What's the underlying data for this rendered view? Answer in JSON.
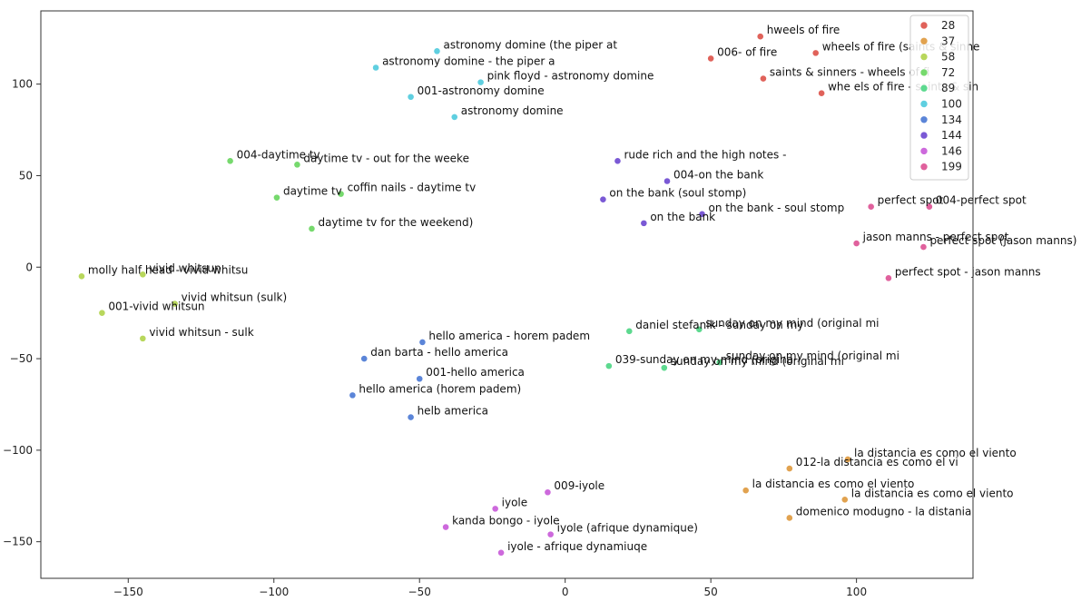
{
  "chart_data": {
    "type": "scatter",
    "title": "",
    "xlabel": "",
    "ylabel": "",
    "xlim": [
      -180,
      140
    ],
    "ylim": [
      -170,
      140
    ],
    "xticks": [
      -150,
      -100,
      -50,
      0,
      50,
      100
    ],
    "yticks": [
      -150,
      -100,
      -50,
      0,
      50,
      100
    ],
    "grid": false,
    "legend": {
      "placement": "top-right"
    },
    "series": [
      {
        "name": "28",
        "color": "#e0625a",
        "points": [
          {
            "x": 67,
            "y": 126,
            "label": "hweels of fire"
          },
          {
            "x": 50,
            "y": 114,
            "label": "006- of fire"
          },
          {
            "x": 86,
            "y": 117,
            "label": "wheels of fire (saints & sinne"
          },
          {
            "x": 68,
            "y": 103,
            "label": "saints & sinners - wheels of fi"
          },
          {
            "x": 88,
            "y": 95,
            "label": "whe els of fire - saints & sin"
          }
        ]
      },
      {
        "name": "37",
        "color": "#e1a24f",
        "points": [
          {
            "x": 97,
            "y": -105,
            "label": "la distancia es como el viento"
          },
          {
            "x": 77,
            "y": -110,
            "label": "012-la distancia es como el vi"
          },
          {
            "x": 62,
            "y": -122,
            "label": "la distancia es como el viento"
          },
          {
            "x": 96,
            "y": -127,
            "label": "la distancia es como el viento"
          },
          {
            "x": 77,
            "y": -137,
            "label": "domenico modugno - la distania"
          }
        ]
      },
      {
        "name": "58",
        "color": "#b8d75c",
        "points": [
          {
            "x": -166,
            "y": -5,
            "label": "molly half head - vivid whitsu"
          },
          {
            "x": -145,
            "y": -4,
            "label": "vivid whitsun"
          },
          {
            "x": -134,
            "y": -20,
            "label": "vivid whitsun (sulk)"
          },
          {
            "x": -159,
            "y": -25,
            "label": "001-vivid whitsun"
          },
          {
            "x": -145,
            "y": -39,
            "label": "vivid whitsun - sulk"
          }
        ]
      },
      {
        "name": "72",
        "color": "#76d96d",
        "points": [
          {
            "x": -115,
            "y": 58,
            "label": "004-daytime tv"
          },
          {
            "x": -92,
            "y": 56,
            "label": "daytime tv - out for the weeke"
          },
          {
            "x": -99,
            "y": 38,
            "label": "daytime tv"
          },
          {
            "x": -77,
            "y": 40,
            "label": "coffin nails - daytime tv"
          },
          {
            "x": -87,
            "y": 21,
            "label": "daytime tv for the weekend)"
          }
        ]
      },
      {
        "name": "89",
        "color": "#5dd98f",
        "points": [
          {
            "x": 22,
            "y": -35,
            "label": "daniel stefanik - sunday on my"
          },
          {
            "x": 46,
            "y": -34,
            "label": "sunday on my mind (original mi"
          },
          {
            "x": 15,
            "y": -54,
            "label": "039-sunday on my mind (origina"
          },
          {
            "x": 34,
            "y": -55,
            "label": "sunday on my mind (original mi"
          },
          {
            "x": 53,
            "y": -52,
            "label": "sunday on my mind (original mi"
          }
        ]
      },
      {
        "name": "100",
        "color": "#5fcfe0",
        "points": [
          {
            "x": -44,
            "y": 118,
            "label": "astronomy domine (the piper at"
          },
          {
            "x": -65,
            "y": 109,
            "label": "astronomy domine - the piper a"
          },
          {
            "x": -29,
            "y": 101,
            "label": "pink floyd - astronomy domine"
          },
          {
            "x": -53,
            "y": 93,
            "label": "001-astronomy domine"
          },
          {
            "x": -38,
            "y": 82,
            "label": "astronomy domine"
          }
        ]
      },
      {
        "name": "134",
        "color": "#5b85d8",
        "points": [
          {
            "x": -49,
            "y": -41,
            "label": "hello america - horem padem"
          },
          {
            "x": -69,
            "y": -50,
            "label": "dan barta - hello america"
          },
          {
            "x": -50,
            "y": -61,
            "label": "001-hello america"
          },
          {
            "x": -73,
            "y": -70,
            "label": "hello america (horem padem)"
          },
          {
            "x": -53,
            "y": -82,
            "label": "helb america"
          }
        ]
      },
      {
        "name": "144",
        "color": "#7a59d5",
        "points": [
          {
            "x": 18,
            "y": 58,
            "label": "rude rich and the high notes -"
          },
          {
            "x": 35,
            "y": 47,
            "label": "004-on the bank"
          },
          {
            "x": 13,
            "y": 37,
            "label": "on the bank (soul stomp)"
          },
          {
            "x": 47,
            "y": 29,
            "label": "on the bank - soul stomp"
          },
          {
            "x": 27,
            "y": 24,
            "label": "on the bank"
          }
        ]
      },
      {
        "name": "146",
        "color": "#cd69dc",
        "points": [
          {
            "x": -6,
            "y": -123,
            "label": "009-iyole"
          },
          {
            "x": -24,
            "y": -132,
            "label": "iyole"
          },
          {
            "x": -41,
            "y": -142,
            "label": "kanda bongo - iyole"
          },
          {
            "x": -5,
            "y": -146,
            "label": "iyole (afrique dynamique)"
          },
          {
            "x": -22,
            "y": -156,
            "label": "iyole - afrique dynamiuqe"
          }
        ]
      },
      {
        "name": "199",
        "color": "#e0619d",
        "points": [
          {
            "x": 105,
            "y": 33,
            "label": "perfect spot"
          },
          {
            "x": 125,
            "y": 33,
            "label": "004-perfect spot"
          },
          {
            "x": 100,
            "y": 13,
            "label": "jason manns - perfect spot"
          },
          {
            "x": 123,
            "y": 11,
            "label": "perfect spot (jason manns)"
          },
          {
            "x": 111,
            "y": -6,
            "label": "perfect spot - jason manns"
          }
        ]
      }
    ]
  }
}
